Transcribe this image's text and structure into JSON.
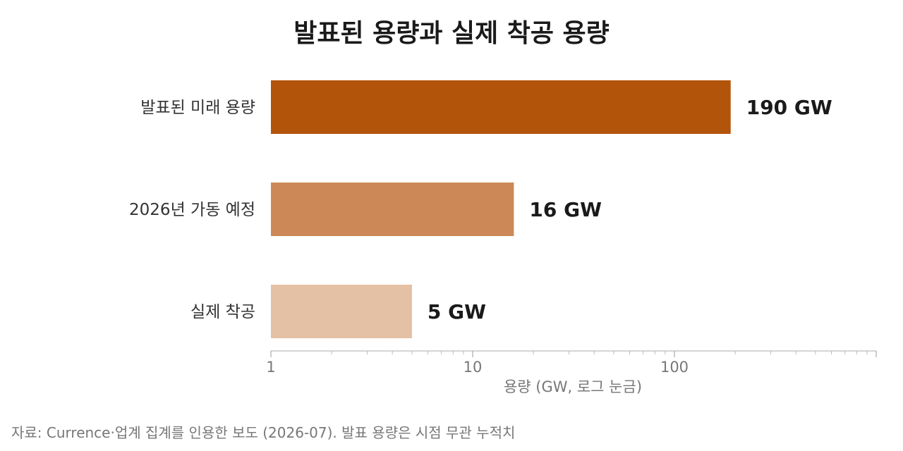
{
  "title": "발표된 용량과 실제 착공 용량",
  "source_note": "자료: Currence·업계 집계를 인용한 보도 (2026-07). 발표 용량은 시점 무관 누적치",
  "chart_data": {
    "type": "bar",
    "orientation": "horizontal",
    "x_scale": "log",
    "xlim": [
      1,
      1000
    ],
    "xticks": [
      1,
      10,
      100
    ],
    "xtick_labels": [
      "1",
      "10",
      "100"
    ],
    "xlabel": "용량 (GW, 로그 눈금)",
    "grid": false,
    "legend": "none",
    "categories": [
      "발표된 미래 용량",
      "2026년 가동 예정",
      "실제 착공"
    ],
    "values": [
      190,
      16,
      5
    ],
    "value_labels": [
      "190 GW",
      "16 GW",
      "5 GW"
    ],
    "colors": [
      "#b3540b",
      "#cc8957",
      "#e4c0a4"
    ]
  }
}
